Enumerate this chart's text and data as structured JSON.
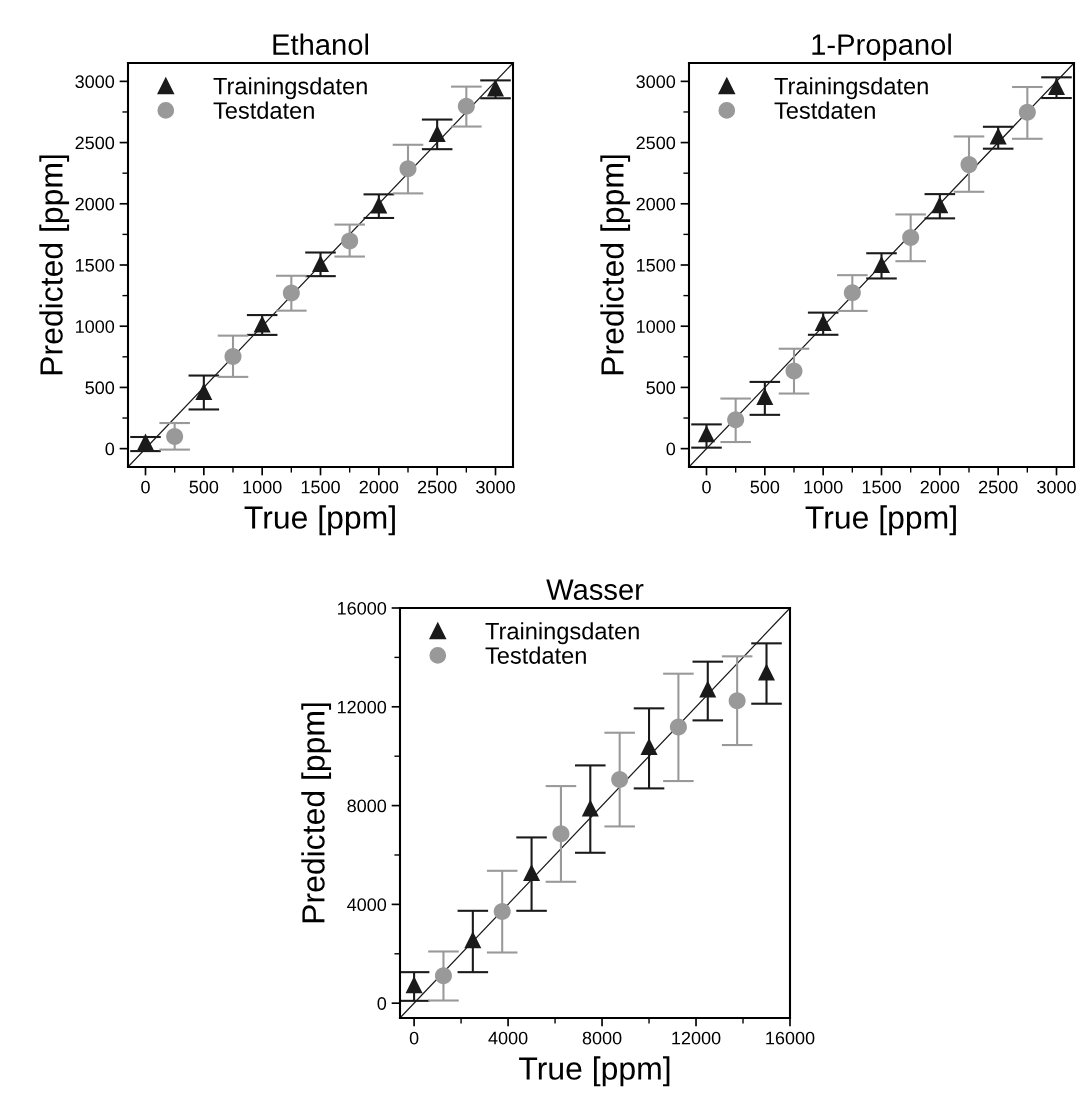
{
  "chart_data": [
    {
      "type": "scatter",
      "title": "Ethanol",
      "xlabel": "True [ppm]",
      "ylabel": "Predicted [ppm]",
      "legend": "top left",
      "xlim": [
        -150,
        3150
      ],
      "ylim": [
        -150,
        3150
      ],
      "xticks": [
        0,
        {
          "value": 250,
          "label": null
        },
        500,
        {
          "value": 750,
          "label": null
        },
        1000,
        {
          "value": 1250,
          "label": null
        },
        1500,
        {
          "value": 1750,
          "label": null
        },
        2000,
        {
          "value": 2250,
          "label": null
        },
        2500,
        {
          "value": 2750,
          "label": null
        },
        3000
      ],
      "yticks": [
        0,
        {
          "value": 250,
          "label": null
        },
        500,
        {
          "value": 750,
          "label": null
        },
        1000,
        {
          "value": 1250,
          "label": null
        },
        1500,
        {
          "value": 1750,
          "label": null
        },
        2000,
        {
          "value": 2250,
          "label": null
        },
        2500,
        {
          "value": 2750,
          "label": null
        },
        3000
      ],
      "series": [
        {
          "type": "line",
          "color": "#1a1a1a",
          "marker": "none",
          "x": [
            -150,
            3150
          ],
          "values": [
            -150,
            3150
          ]
        },
        {
          "name": "Trainingsdaten",
          "color": "#1a1a1a",
          "marker": "triangle",
          "x": [
            0,
            500,
            1000,
            1500,
            2000,
            2500,
            3000
          ],
          "values": [
            55,
            467,
            1018,
            1512,
            1990,
            2574,
            2946
          ],
          "errors": [
            [
              -20,
              95
            ],
            [
              320,
              597
            ],
            [
              929,
              1091
            ],
            [
              1409,
              1602
            ],
            [
              1884,
              2077
            ],
            [
              2446,
              2688
            ],
            [
              2862,
              3008
            ]
          ]
        },
        {
          "name": "Testdaten",
          "color": "#999999",
          "marker": "circle",
          "x": [
            250,
            750,
            1250,
            1750,
            2250,
            2750
          ],
          "values": [
            100,
            752,
            1271,
            1697,
            2286,
            2797
          ],
          "errors": [
            [
              -8,
              209
            ],
            [
              586,
              923
            ],
            [
              1127,
              1412
            ],
            [
              1569,
              1830
            ],
            [
              2085,
              2482
            ],
            [
              2631,
              2957
            ]
          ]
        }
      ]
    },
    {
      "type": "scatter",
      "title": "1-Propanol",
      "xlabel": "True [ppm]",
      "ylabel": "Predicted [ppm]",
      "legend": "top left",
      "xlim": [
        -150,
        3150
      ],
      "ylim": [
        -150,
        3150
      ],
      "xticks": [
        0,
        {
          "value": 250,
          "label": null
        },
        500,
        {
          "value": 750,
          "label": null
        },
        1000,
        {
          "value": 1250,
          "label": null
        },
        1500,
        {
          "value": 1750,
          "label": null
        },
        2000,
        {
          "value": 2250,
          "label": null
        },
        2500,
        {
          "value": 2750,
          "label": null
        },
        3000
      ],
      "yticks": [
        0,
        {
          "value": 250,
          "label": null
        },
        500,
        {
          "value": 750,
          "label": null
        },
        1000,
        {
          "value": 1250,
          "label": null
        },
        1500,
        {
          "value": 1750,
          "label": null
        },
        2000,
        {
          "value": 2250,
          "label": null
        },
        2500,
        {
          "value": 2750,
          "label": null
        },
        3000
      ],
      "series": [
        {
          "type": "line",
          "color": "#1a1a1a",
          "marker": "none",
          "x": [
            -150,
            3150
          ],
          "values": [
            -150,
            3150
          ]
        },
        {
          "name": "Trainingsdaten",
          "color": "#1a1a1a",
          "marker": "triangle",
          "x": [
            0,
            500,
            1000,
            1500,
            2000,
            2500,
            3000
          ],
          "values": [
            122,
            425,
            1030,
            1504,
            1992,
            2553,
            2959
          ],
          "errors": [
            [
              8,
              198
            ],
            [
              276,
              545
            ],
            [
              930,
              1111
            ],
            [
              1390,
              1596
            ],
            [
              1881,
              2079
            ],
            [
              2450,
              2629
            ],
            [
              2864,
              3033
            ]
          ]
        },
        {
          "name": "Testdaten",
          "color": "#999999",
          "marker": "circle",
          "x": [
            250,
            750,
            1250,
            1750,
            2250,
            2750
          ],
          "values": [
            236,
            634,
            1274,
            1724,
            2320,
            2748
          ],
          "errors": [
            [
              54,
              409
            ],
            [
              450,
              816
            ],
            [
              1125,
              1417
            ],
            [
              1531,
              1913
            ],
            [
              2098,
              2550
            ],
            [
              2531,
              2954
            ]
          ]
        }
      ]
    },
    {
      "type": "scatter",
      "title": "Wasser",
      "xlabel": "True [ppm]",
      "ylabel": "Predicted [ppm]",
      "legend": "top left",
      "xlim": [
        -600,
        16000
      ],
      "ylim": [
        -600,
        16000
      ],
      "xticks": [
        0,
        {
          "value": 2000,
          "label": null
        },
        4000,
        {
          "value": 6000,
          "label": null
        },
        8000,
        {
          "value": 10000,
          "label": null
        },
        12000,
        {
          "value": 14000,
          "label": null
        },
        16000
      ],
      "yticks": [
        0,
        {
          "value": 2000,
          "label": null
        },
        4000,
        {
          "value": 6000,
          "label": null
        },
        8000,
        {
          "value": 10000,
          "label": null
        },
        12000,
        {
          "value": 14000,
          "label": null
        },
        16000
      ],
      "series": [
        {
          "type": "line",
          "color": "#1a1a1a",
          "marker": "none",
          "x": [
            -600,
            16000
          ],
          "values": [
            -600,
            16000
          ]
        },
        {
          "name": "Trainingsdaten",
          "color": "#1a1a1a",
          "marker": "triangle",
          "x": [
            0,
            2500,
            5000,
            7500,
            10000,
            12500,
            15000
          ],
          "values": [
            743,
            2565,
            5293,
            7899,
            10397,
            12720,
            13408
          ],
          "errors": [
            [
              95,
              1256
            ],
            [
              1256,
              3740
            ],
            [
              3740,
              6711
            ],
            [
              6090,
              9627
            ],
            [
              8696,
              11937
            ],
            [
              11450,
              13827
            ],
            [
              12125,
              14569
            ]
          ]
        },
        {
          "name": "Testdaten",
          "color": "#999999",
          "marker": "circle",
          "x": [
            1250,
            3750,
            6250,
            8750,
            11250,
            13750
          ],
          "values": [
            1107,
            3713,
            6859,
            9060,
            11180,
            12247
          ],
          "errors": [
            [
              108,
              2093
            ],
            [
              2052,
              5360
            ],
            [
              4915,
              8790
            ],
            [
              7156,
              10950
            ],
            [
              8993,
              13340
            ],
            [
              10451,
              14043
            ]
          ]
        }
      ]
    }
  ]
}
